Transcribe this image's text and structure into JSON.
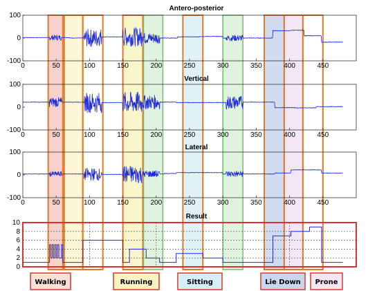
{
  "chart_data": [
    {
      "type": "line",
      "title": "Antero-posterior",
      "xlim": [
        0,
        500
      ],
      "ylim": [
        -100,
        100
      ],
      "xticks": [
        0,
        50,
        100,
        150,
        200,
        250,
        300,
        350,
        400,
        450
      ],
      "yticks": [
        100,
        0,
        -100
      ],
      "levels": [
        [
          0,
          2
        ],
        [
          38,
          2
        ],
        [
          70,
          0
        ],
        [
          90,
          0
        ],
        [
          113,
          5
        ],
        [
          150,
          5
        ],
        [
          182,
          0
        ],
        [
          212,
          0
        ],
        [
          232,
          5
        ],
        [
          265,
          7
        ],
        [
          300,
          0
        ],
        [
          330,
          0
        ],
        [
          360,
          0
        ],
        [
          375,
          32
        ],
        [
          402,
          34
        ],
        [
          422,
          10
        ],
        [
          448,
          -18
        ],
        [
          470,
          -18
        ]
      ],
      "bursts": [
        {
          "x0": 40,
          "x1": 58,
          "amp": 12
        },
        {
          "x0": 92,
          "x1": 118,
          "amp": 40
        },
        {
          "x0": 150,
          "x1": 178,
          "amp": 42
        },
        {
          "x0": 180,
          "x1": 205,
          "amp": 25
        },
        {
          "x0": 305,
          "x1": 330,
          "amp": 14
        }
      ]
    },
    {
      "type": "line",
      "title": "Vertical",
      "xlim": [
        0,
        500
      ],
      "ylim": [
        -100,
        100
      ],
      "xticks": [
        0,
        50,
        100,
        150,
        200,
        250,
        300,
        350,
        400,
        450
      ],
      "yticks": [
        100,
        0,
        -100
      ],
      "levels": [
        [
          0,
          22
        ],
        [
          60,
          22
        ],
        [
          92,
          20
        ],
        [
          120,
          20
        ],
        [
          182,
          22
        ],
        [
          212,
          22
        ],
        [
          230,
          20
        ],
        [
          300,
          20
        ],
        [
          330,
          22
        ],
        [
          360,
          22
        ],
        [
          378,
          -2
        ],
        [
          408,
          -3
        ],
        [
          440,
          2
        ],
        [
          470,
          2
        ]
      ],
      "bursts": [
        {
          "x0": 40,
          "x1": 58,
          "amp": 22
        },
        {
          "x0": 92,
          "x1": 118,
          "amp": 45
        },
        {
          "x0": 150,
          "x1": 178,
          "amp": 48
        },
        {
          "x0": 180,
          "x1": 205,
          "amp": 32
        },
        {
          "x0": 305,
          "x1": 330,
          "amp": 30
        }
      ]
    },
    {
      "type": "line",
      "title": "Lateral",
      "xlim": [
        0,
        500
      ],
      "ylim": [
        -100,
        100
      ],
      "xticks": [
        0,
        50,
        100,
        150,
        200,
        250,
        300,
        350,
        400,
        450
      ],
      "yticks": [
        100,
        0,
        -100
      ],
      "levels": [
        [
          0,
          4
        ],
        [
          60,
          4
        ],
        [
          92,
          2
        ],
        [
          150,
          2
        ],
        [
          182,
          4
        ],
        [
          212,
          6
        ],
        [
          230,
          10
        ],
        [
          265,
          10
        ],
        [
          300,
          4
        ],
        [
          360,
          4
        ],
        [
          378,
          8
        ],
        [
          402,
          22
        ],
        [
          430,
          22
        ],
        [
          448,
          8
        ],
        [
          470,
          8
        ]
      ],
      "bursts": [
        {
          "x0": 40,
          "x1": 58,
          "amp": 12
        },
        {
          "x0": 92,
          "x1": 118,
          "amp": 28
        },
        {
          "x0": 150,
          "x1": 178,
          "amp": 40
        },
        {
          "x0": 180,
          "x1": 205,
          "amp": 16
        },
        {
          "x0": 305,
          "x1": 330,
          "amp": 14
        }
      ]
    },
    {
      "type": "line",
      "title": "Result",
      "xlim": [
        0,
        500
      ],
      "ylim": [
        0,
        10
      ],
      "yticks": [
        10,
        8,
        6,
        4,
        2,
        0
      ],
      "steps": [
        [
          0,
          1
        ],
        [
          38,
          1
        ],
        [
          40,
          5
        ],
        [
          42,
          2
        ],
        [
          44,
          5
        ],
        [
          46,
          2
        ],
        [
          48,
          5
        ],
        [
          50,
          2
        ],
        [
          52,
          5
        ],
        [
          54,
          2
        ],
        [
          58,
          5
        ],
        [
          60,
          1
        ],
        [
          70,
          1
        ],
        [
          90,
          6
        ],
        [
          120,
          6
        ],
        [
          150,
          1
        ],
        [
          160,
          4
        ],
        [
          185,
          2
        ],
        [
          205,
          1
        ],
        [
          230,
          3
        ],
        [
          260,
          3
        ],
        [
          270,
          2
        ],
        [
          300,
          1
        ],
        [
          350,
          1
        ],
        [
          375,
          7
        ],
        [
          402,
          8
        ],
        [
          430,
          9
        ],
        [
          448,
          1
        ],
        [
          470,
          1
        ]
      ]
    }
  ],
  "labels": {
    "walking": "Walking",
    "running": "Running",
    "sitting": "Sitting",
    "lie_down": "Lie Down",
    "prone": "Prone"
  },
  "colors": {
    "signal": "#1f2bd8",
    "box_border": "#e07a2a",
    "label_border": "#d23a2a",
    "result_border": "#d9342b",
    "walking": "#f6c9c2",
    "transition": "#fbf4cf",
    "running": "#f8f4c3",
    "green": "#dbf1d9",
    "sitting": "#daf0f6",
    "lie_down": "#c9d6ef",
    "prone": "#f1e3f6"
  }
}
